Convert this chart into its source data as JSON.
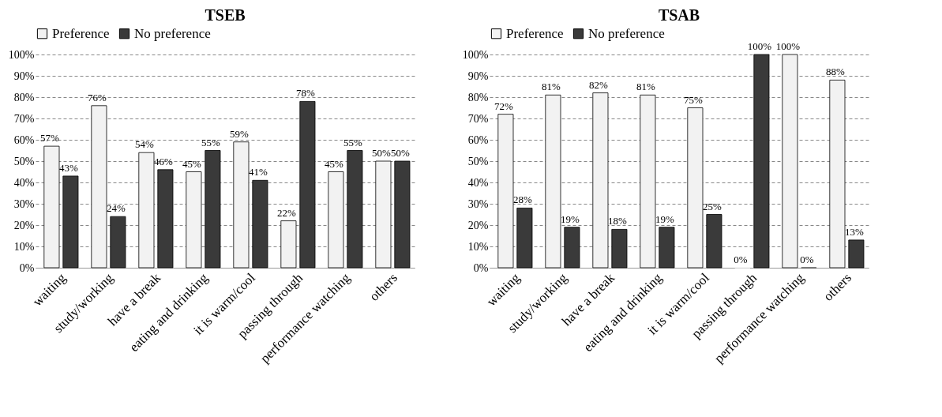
{
  "chart_data": [
    {
      "type": "bar",
      "title": "TSEB",
      "categories": [
        "waiting",
        "study/working",
        "have a break",
        "eating and drinking",
        "it is warm/cool",
        "passing through",
        "performance watching",
        "others"
      ],
      "series": [
        {
          "name": "Preference",
          "color": "#f2f2f2",
          "values": [
            57,
            76,
            54,
            45,
            59,
            22,
            45,
            50
          ],
          "value_labels": [
            "57%",
            "76%",
            "54%",
            "45%",
            "59%",
            "22%",
            "45%",
            "50%"
          ]
        },
        {
          "name": "No preference",
          "color": "#3a3a3a",
          "values": [
            43,
            24,
            46,
            55,
            41,
            78,
            55,
            50
          ],
          "value_labels": [
            "43%",
            "24%",
            "46%",
            "55%",
            "41%",
            "78%",
            "55%",
            "50%"
          ]
        }
      ],
      "ylim": [
        0,
        100
      ],
      "yticks": [
        {
          "value": 0,
          "label": "0%"
        },
        {
          "value": 10,
          "label": "10%"
        },
        {
          "value": 20,
          "label": "20%"
        },
        {
          "value": 30,
          "label": "30%"
        },
        {
          "value": 40,
          "label": "40%"
        },
        {
          "value": 50,
          "label": "50%"
        },
        {
          "value": 60,
          "label": "60%"
        },
        {
          "value": 70,
          "label": "70%"
        },
        {
          "value": 80,
          "label": "80%"
        },
        {
          "value": 90,
          "label": "90%"
        },
        {
          "value": 100,
          "label": "100%"
        }
      ],
      "grid": "y",
      "legend": "top"
    },
    {
      "type": "bar",
      "title": "TSAB",
      "categories": [
        "waiting",
        "study/working",
        "have a break",
        "eating and drinking",
        "it is warm/cool",
        "passing through",
        "performance watching",
        "others"
      ],
      "series": [
        {
          "name": "Preference",
          "color": "#f2f2f2",
          "values": [
            72,
            81,
            82,
            81,
            75,
            0,
            100,
            88
          ],
          "value_labels": [
            "72%",
            "81%",
            "82%",
            "81%",
            "75%",
            "0%",
            "100%",
            "88%"
          ]
        },
        {
          "name": "No preference",
          "color": "#3a3a3a",
          "values": [
            28,
            19,
            18,
            19,
            25,
            100,
            0,
            13
          ],
          "value_labels": [
            "28%",
            "19%",
            "18%",
            "19%",
            "25%",
            "100%",
            "0%",
            "13%"
          ]
        }
      ],
      "ylim": [
        0,
        100
      ],
      "yticks": [
        {
          "value": 0,
          "label": "0%"
        },
        {
          "value": 10,
          "label": "10%"
        },
        {
          "value": 20,
          "label": "20%"
        },
        {
          "value": 30,
          "label": "30%"
        },
        {
          "value": 40,
          "label": "40%"
        },
        {
          "value": 50,
          "label": "50%"
        },
        {
          "value": 60,
          "label": "60%"
        },
        {
          "value": 70,
          "label": "70%"
        },
        {
          "value": 80,
          "label": "80%"
        },
        {
          "value": 90,
          "label": "90%"
        },
        {
          "value": 100,
          "label": "100%"
        }
      ],
      "grid": "y",
      "legend": "top"
    }
  ]
}
